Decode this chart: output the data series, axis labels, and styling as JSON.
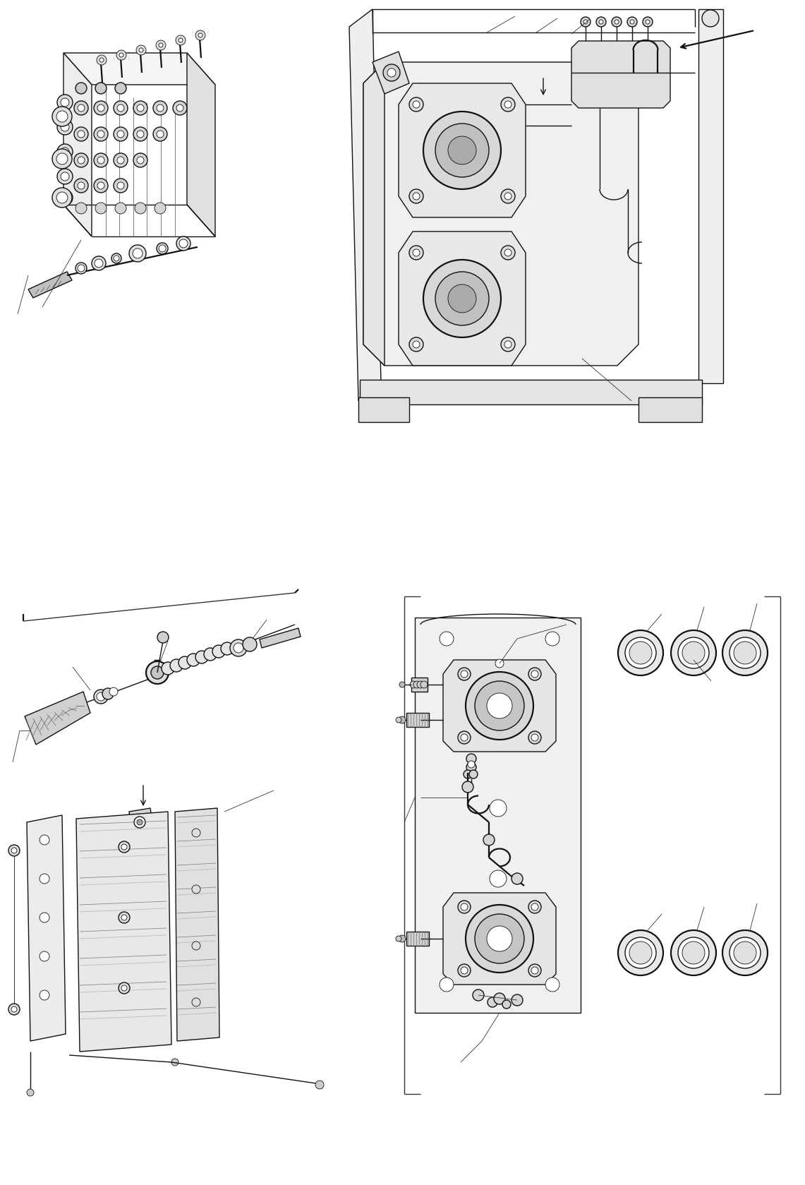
{
  "background_color": "#ffffff",
  "line_color": "#111111",
  "fig_width": 11.41,
  "fig_height": 16.79,
  "lw_thin": 0.6,
  "lw_med": 1.0,
  "lw_thick": 1.6,
  "lw_vthick": 2.2
}
